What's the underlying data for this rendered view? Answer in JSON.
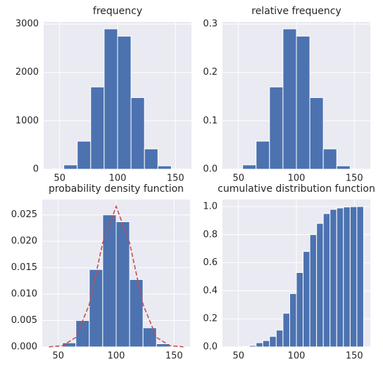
{
  "chart_data": [
    {
      "type": "histogram",
      "title": "frequency",
      "color": "#4c72b0",
      "grid": true,
      "bins": [
        42,
        53.6,
        65.2,
        76.8,
        88.4,
        100,
        111.6,
        123.2,
        134.8,
        146.4,
        158
      ],
      "values": [
        5,
        90,
        580,
        1700,
        2900,
        2750,
        1480,
        420,
        70,
        5
      ],
      "xlim": [
        36.2,
        163.8
      ],
      "xticks": [
        50,
        100,
        150
      ],
      "ylim": [
        0,
        3045
      ],
      "yticks": [
        0,
        1000,
        2000,
        3000
      ]
    },
    {
      "type": "histogram",
      "title": "relative frequency",
      "color": "#4c72b0",
      "grid": true,
      "bins": [
        42,
        53.6,
        65.2,
        76.8,
        88.4,
        100,
        111.6,
        123.2,
        134.8,
        146.4,
        158
      ],
      "values": [
        0.0005,
        0.009,
        0.058,
        0.17,
        0.29,
        0.275,
        0.148,
        0.042,
        0.007,
        0.0005
      ],
      "xlim": [
        36.2,
        163.8
      ],
      "xticks": [
        50,
        100,
        150
      ],
      "ylim": [
        0,
        0.3045
      ],
      "yticks": [
        {
          "value": 0,
          "label": "0.0"
        },
        0.1,
        0.2,
        0.3
      ]
    },
    {
      "type": "histogram",
      "title": "probability density function",
      "color": "#4c72b0",
      "grid": true,
      "bins": [
        42,
        53.6,
        65.2,
        76.8,
        88.4,
        100,
        111.6,
        123.2,
        134.8,
        146.4,
        158
      ],
      "values": [
        4.3e-05,
        0.00078,
        0.005,
        0.01466,
        0.025,
        0.0237,
        0.01276,
        0.00362,
        0.0006,
        4.3e-05
      ],
      "line": {
        "color": "#c44e52",
        "x": [
          42,
          53.6,
          65.2,
          76.8,
          88.4,
          100,
          111.6,
          123.2,
          134.8,
          146.4,
          158
        ],
        "values": [
          1.5e-05,
          0.00022,
          0.0018,
          0.00804,
          0.0197,
          0.0266,
          0.0197,
          0.00804,
          0.0018,
          0.00022,
          1.5e-05
        ]
      },
      "xlim": [
        36.2,
        163.8
      ],
      "xticks": [
        50,
        100,
        150
      ],
      "ylim": [
        0,
        0.0279
      ],
      "yticks": [
        {
          "value": 0,
          "label": "0.000"
        },
        0.005,
        {
          "value": 0.01,
          "label": "0.010"
        },
        0.015,
        {
          "value": 0.02,
          "label": "0.020"
        },
        0.025
      ]
    },
    {
      "type": "histogram",
      "title": "cumulative distribution function",
      "color": "#4c72b0",
      "grid": true,
      "bins": [
        42,
        47.8,
        53.6,
        59.4,
        65.2,
        71,
        76.8,
        82.6,
        88.4,
        94.2,
        100,
        105.8,
        111.6,
        117.4,
        123.2,
        129,
        134.8,
        140.6,
        146.4,
        152.2,
        158
      ],
      "values": [
        0.0003,
        0.001,
        0.004,
        0.01,
        0.03,
        0.045,
        0.075,
        0.12,
        0.24,
        0.38,
        0.53,
        0.68,
        0.8,
        0.88,
        0.95,
        0.98,
        0.99,
        0.997,
        0.999,
        1.0
      ],
      "xlim": [
        36.2,
        163.8
      ],
      "xticks": [
        50,
        100,
        150
      ],
      "ylim": [
        0,
        1.05
      ],
      "yticks": [
        {
          "value": 0,
          "label": "0.0"
        },
        0.2,
        0.4,
        0.6,
        0.8,
        {
          "value": 1,
          "label": "1.0"
        }
      ]
    }
  ]
}
